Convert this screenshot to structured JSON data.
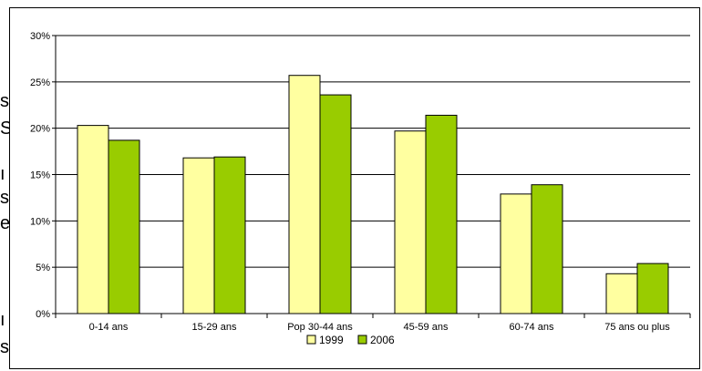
{
  "chart_data": {
    "type": "bar",
    "categories": [
      "0-14 ans",
      "15-29 ans",
      "Pop 30-44 ans",
      "45-59 ans",
      "60-74 ans",
      "75 ans ou plus"
    ],
    "series": [
      {
        "name": "1999",
        "values": [
          20.3,
          16.8,
          25.7,
          19.7,
          12.9,
          4.3
        ],
        "color": "#FFFFA0"
      },
      {
        "name": "2006",
        "values": [
          18.7,
          16.9,
          23.6,
          21.4,
          13.9,
          5.4
        ],
        "color": "#99CC00"
      }
    ],
    "yticks": [
      "0%",
      "5%",
      "10%",
      "15%",
      "20%",
      "25%",
      "30%"
    ],
    "ylim": [
      0,
      30
    ],
    "grid": true,
    "legend_position": "bottom"
  }
}
